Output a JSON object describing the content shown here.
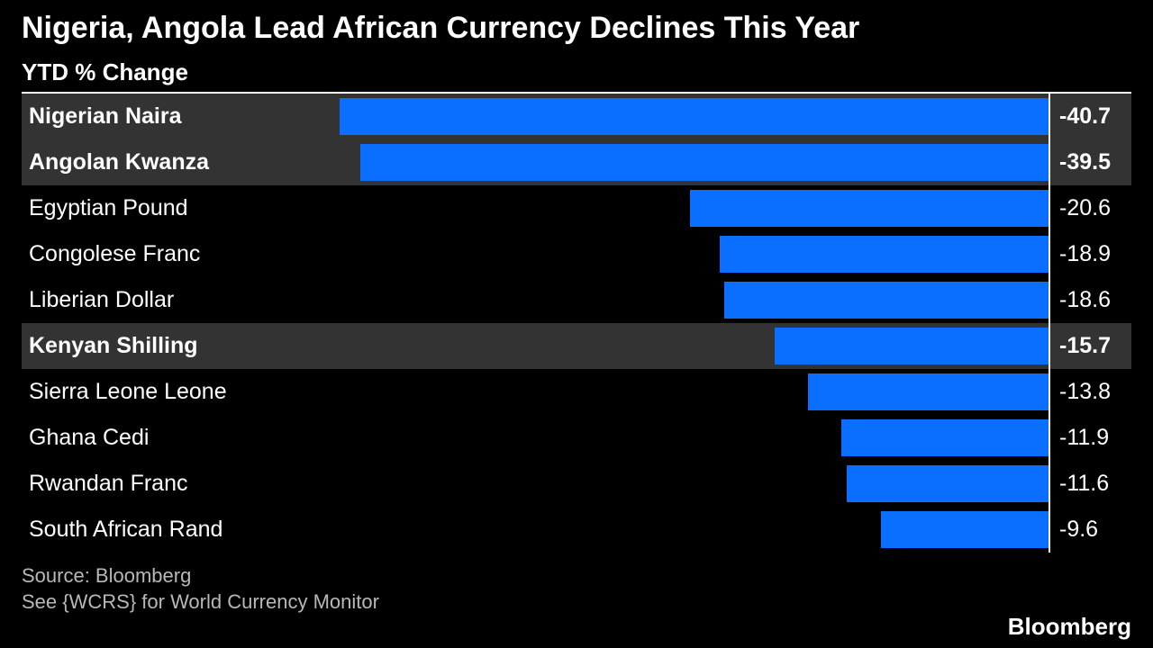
{
  "title": "Nigeria, Angola Lead African Currency Declines This Year",
  "subtitle": "YTD % Change",
  "chart": {
    "type": "bar-horizontal",
    "bar_color": "#0a6fff",
    "background_color": "#000000",
    "highlight_background": "#333333",
    "axis_color": "#ffffff",
    "text_color": "#ffffff",
    "label_fontsize": 25,
    "title_fontsize": 34,
    "subtitle_fontsize": 26,
    "xlim_min": -42,
    "xlim_max": 0,
    "rows": [
      {
        "label": "Nigerian Naira",
        "value": -40.7,
        "highlight": true
      },
      {
        "label": "Angolan Kwanza",
        "value": -39.5,
        "highlight": true
      },
      {
        "label": "Egyptian Pound",
        "value": -20.6,
        "highlight": false
      },
      {
        "label": "Congolese Franc",
        "value": -18.9,
        "highlight": false
      },
      {
        "label": "Liberian Dollar",
        "value": -18.6,
        "highlight": false
      },
      {
        "label": "Kenyan Shilling",
        "value": -15.7,
        "highlight": true
      },
      {
        "label": "Sierra Leone Leone",
        "value": -13.8,
        "highlight": false
      },
      {
        "label": "Ghana Cedi",
        "value": -11.9,
        "highlight": false
      },
      {
        "label": "Rwandan Franc",
        "value": -11.6,
        "highlight": false
      },
      {
        "label": "South African Rand",
        "value": -9.6,
        "highlight": false
      }
    ]
  },
  "footer": {
    "source": "Source: Bloomberg",
    "note": "See {WCRS} for World Currency Monitor",
    "note_color": "#b8b8b8",
    "fontsize": 22
  },
  "brand": "Bloomberg"
}
